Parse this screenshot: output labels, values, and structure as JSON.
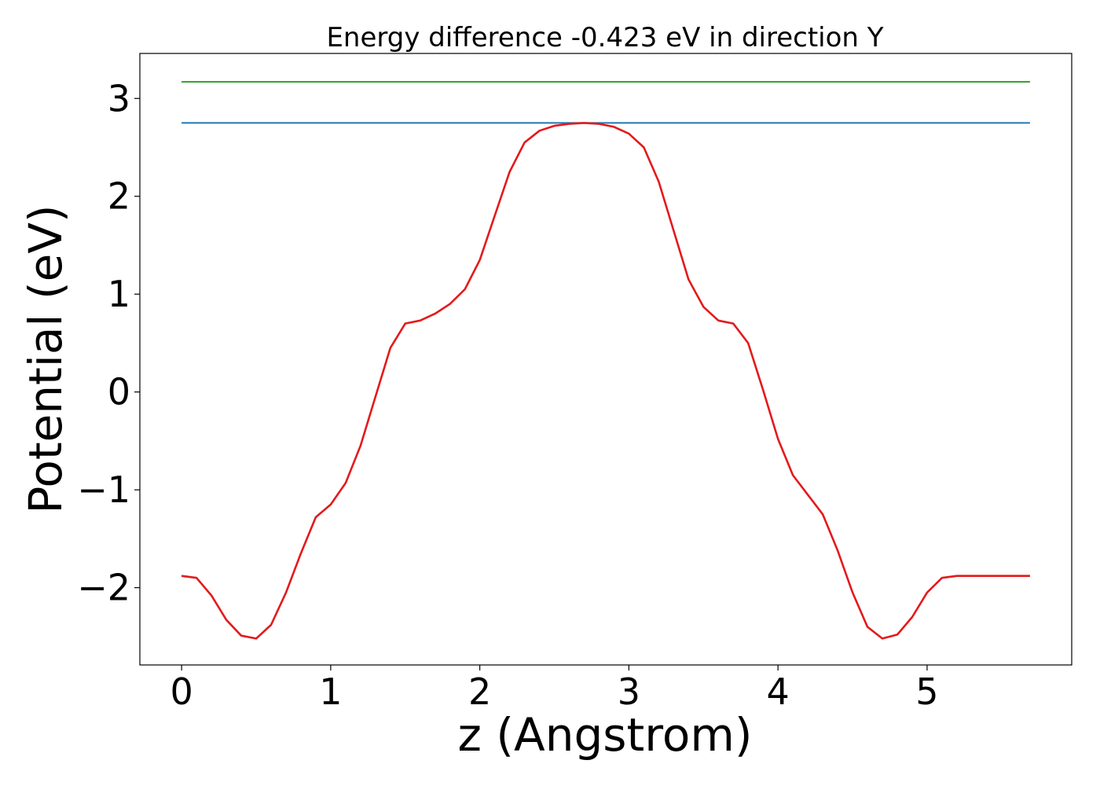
{
  "chart_data": {
    "type": "line",
    "title": "Energy difference -0.423 eV in direction Y",
    "xlabel": "z (Angstrom)",
    "ylabel": "Potential (eV)",
    "xlim": [
      -0.28,
      5.97
    ],
    "ylim": [
      -2.79,
      3.46
    ],
    "xticks": [
      0,
      1,
      2,
      3,
      4,
      5
    ],
    "xtick_labels": [
      "0",
      "1",
      "2",
      "3",
      "4",
      "5"
    ],
    "yticks": [
      -2,
      -1,
      0,
      1,
      2,
      3
    ],
    "ytick_labels": [
      "−2",
      "−1",
      "0",
      "1",
      "2",
      "3"
    ],
    "grid": false,
    "series": [
      {
        "color": "#2ca02c",
        "x": [
          0,
          5.69
        ],
        "y": [
          3.17,
          3.17
        ]
      },
      {
        "color": "#1f77b4",
        "x": [
          0,
          5.69
        ],
        "y": [
          2.75,
          2.75
        ]
      },
      {
        "color": "#e31a1c",
        "x": [
          0,
          0.1,
          0.2,
          0.3,
          0.4,
          0.5,
          0.6,
          0.7,
          0.8,
          0.9,
          1.0,
          1.1,
          1.2,
          1.3,
          1.4,
          1.5,
          1.6,
          1.7,
          1.8,
          1.9,
          2.0,
          2.1,
          2.2,
          2.3,
          2.4,
          2.5,
          2.6,
          2.7,
          2.8,
          2.9,
          3.0,
          3.1,
          3.2,
          3.3,
          3.4,
          3.5,
          3.6,
          3.7,
          3.8,
          3.9,
          4.0,
          4.1,
          4.2,
          4.3,
          4.4,
          4.5,
          4.6,
          4.7,
          4.8,
          4.9,
          5.0,
          5.1,
          5.2,
          5.3,
          5.4,
          5.5,
          5.6,
          5.69
        ],
        "y": [
          -1.88,
          -1.9,
          -2.08,
          -2.33,
          -2.49,
          -2.52,
          -2.38,
          -2.05,
          -1.65,
          -1.28,
          -1.15,
          -0.93,
          -0.55,
          -0.05,
          0.45,
          0.7,
          0.73,
          0.8,
          0.9,
          1.05,
          1.35,
          1.8,
          2.25,
          2.55,
          2.67,
          2.72,
          2.74,
          2.75,
          2.74,
          2.71,
          2.64,
          2.5,
          2.15,
          1.65,
          1.15,
          0.87,
          0.73,
          0.7,
          0.5,
          0.02,
          -0.48,
          -0.85,
          -1.05,
          -1.25,
          -1.62,
          -2.05,
          -2.4,
          -2.52,
          -2.48,
          -2.3,
          -2.05,
          -1.9,
          -1.88,
          -1.88,
          -1.88,
          -1.88,
          -1.88,
          -1.88
        ]
      }
    ]
  }
}
